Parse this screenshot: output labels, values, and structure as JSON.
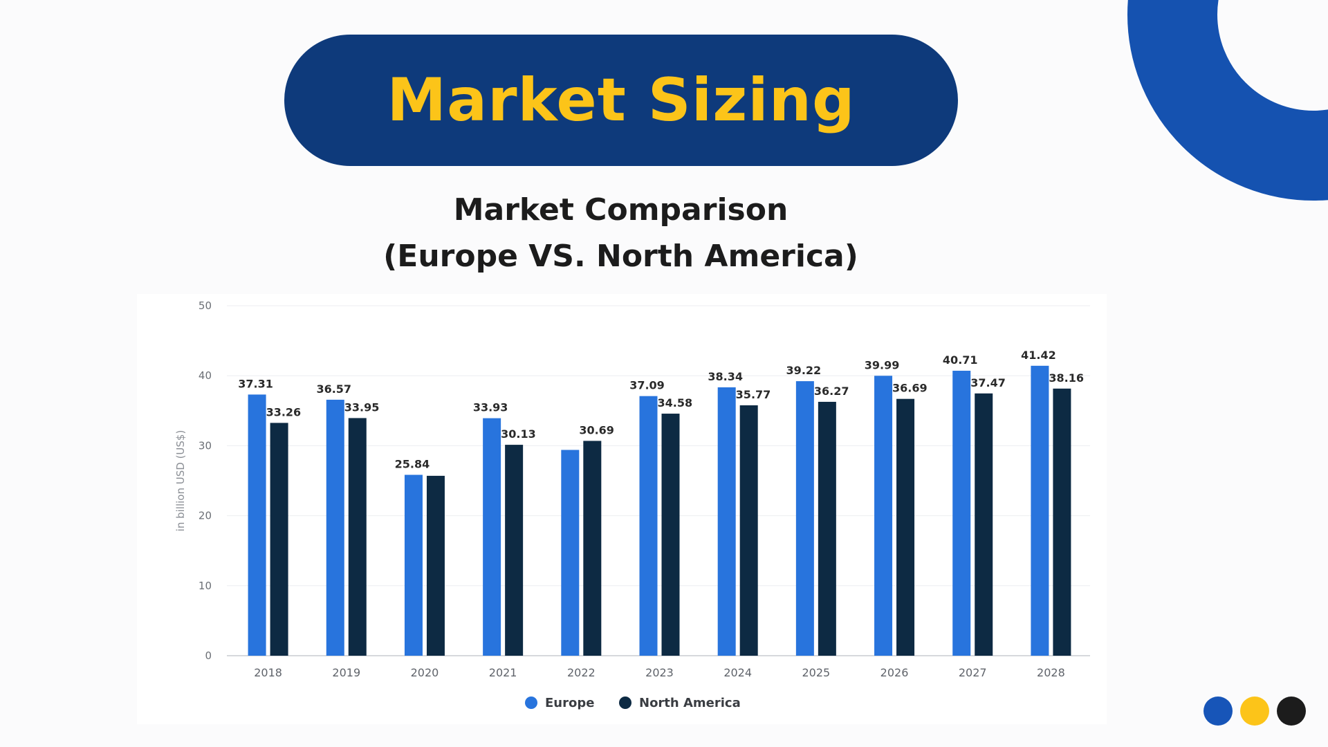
{
  "header": {
    "title": "Market Sizing"
  },
  "subtitle": {
    "line1": "Market Comparison",
    "line2": "(Europe VS. North America)"
  },
  "colors": {
    "pill": "#0e3a7b",
    "title_text": "#fcc419",
    "ring": "#1552b0",
    "europe": "#2874dd",
    "north_america": "#0d2a43",
    "dot_blue": "#1755b8",
    "dot_yellow": "#fcc419",
    "dot_black": "#1c1c1c"
  },
  "chart_data": {
    "type": "bar",
    "title": "",
    "xlabel": "",
    "ylabel": "in billion USD (US$)",
    "ylim": [
      0,
      50
    ],
    "yticks": [
      0,
      10,
      20,
      30,
      40,
      50
    ],
    "grid": true,
    "legend_position": "bottom-center",
    "categories": [
      "2018",
      "2019",
      "2020",
      "2021",
      "2022",
      "2023",
      "2024",
      "2025",
      "2026",
      "2027",
      "2028"
    ],
    "series": [
      {
        "name": "Europe",
        "color": "#2874dd",
        "values": [
          37.31,
          36.57,
          25.84,
          33.93,
          29.4,
          37.09,
          38.34,
          39.22,
          39.99,
          40.71,
          41.42
        ],
        "labels": [
          "37.31",
          "36.57",
          "25.84",
          "33.93",
          "",
          "37.09",
          "38.34",
          "39.22",
          "39.99",
          "40.71",
          "41.42"
        ]
      },
      {
        "name": "North America",
        "color": "#0d2a43",
        "values": [
          33.26,
          33.95,
          25.7,
          30.13,
          30.69,
          34.58,
          35.77,
          36.27,
          36.69,
          37.47,
          38.16
        ],
        "labels": [
          "33.26",
          "33.95",
          "",
          "30.13",
          "30.69",
          "34.58",
          "35.77",
          "36.27",
          "36.69",
          "37.47",
          "38.16"
        ]
      }
    ]
  }
}
